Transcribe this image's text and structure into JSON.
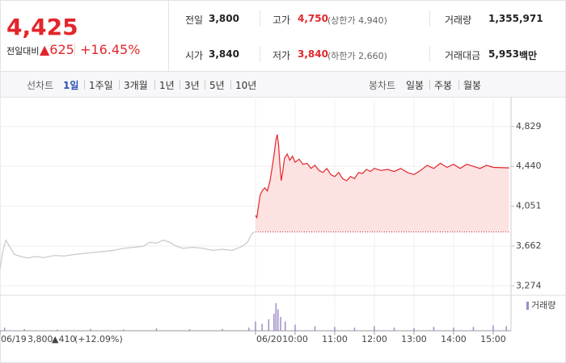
{
  "header": {
    "price": "4,425",
    "change_label": "전일대비",
    "change": "▲625",
    "rate": "+16.45%",
    "rows": [
      [
        {
          "label": "전일",
          "value": "3,800"
        },
        {
          "label": "고가",
          "value": "4,750",
          "note": "(상한가 4,940)"
        },
        {
          "label": "거래량",
          "value": "1,355,971"
        }
      ],
      [
        {
          "label": "시가",
          "value": "3,840"
        },
        {
          "label": "저가",
          "value": "3,840",
          "note": "(하한가 2,660)"
        },
        {
          "label": "거래대금",
          "value": "5,953",
          "unit": "백만"
        }
      ]
    ]
  },
  "tabs": {
    "line_label": "선차트",
    "line_periods": [
      "1일",
      "1주일",
      "3개월",
      "1년",
      "3년",
      "5년",
      "10년"
    ],
    "selected": "1일",
    "candle_label": "봉차트",
    "candle_periods": [
      "일봉",
      "주봉",
      "월봉"
    ]
  },
  "chart_data": {
    "type": "line",
    "xlim": [
      -387,
      387
    ],
    "ylim": [
      3190,
      5040
    ],
    "yticks": [
      {
        "value": 4829,
        "label": "4,829"
      },
      {
        "value": 4440,
        "label": "4,440"
      },
      {
        "value": 4051,
        "label": "4,051"
      },
      {
        "value": 3662,
        "label": "3,662"
      },
      {
        "value": 3274,
        "label": "3,274"
      }
    ],
    "xticks": [
      {
        "value": -387,
        "label": "06/19"
      },
      {
        "value": 0,
        "label": "06/20"
      },
      {
        "value": 60,
        "label": "10:00"
      },
      {
        "value": 120,
        "label": "11:00"
      },
      {
        "value": 180,
        "label": "12:00"
      },
      {
        "value": 240,
        "label": "13:00"
      },
      {
        "value": 300,
        "label": "14:00"
      },
      {
        "value": 360,
        "label": "15:00"
      }
    ],
    "reference_value": 3800,
    "annotation": {
      "price": "3,800",
      "change": "▲410",
      "rate": "(+12.09%)"
    },
    "series": [
      {
        "color": "#c8c8c8",
        "x": [
          -387,
          -383,
          -378,
          -372,
          -365,
          -355,
          -345,
          -335,
          -320,
          -305,
          -290,
          -275,
          -260,
          -245,
          -230,
          -215,
          -200,
          -185,
          -170,
          -160,
          -150,
          -140,
          -130,
          -120,
          -110,
          -95,
          -80,
          -65,
          -50,
          -35,
          -20,
          -12,
          -6,
          -2
        ],
        "values": [
          3440,
          3600,
          3720,
          3650,
          3580,
          3560,
          3545,
          3560,
          3550,
          3570,
          3565,
          3580,
          3590,
          3600,
          3610,
          3620,
          3640,
          3650,
          3660,
          3700,
          3690,
          3720,
          3700,
          3660,
          3640,
          3650,
          3640,
          3620,
          3630,
          3620,
          3660,
          3700,
          3780,
          3800
        ]
      },
      {
        "color": "#e2262b",
        "fill": "#fde2e2",
        "x": [
          0,
          2,
          4,
          7,
          10,
          14,
          18,
          22,
          25,
          28,
          31,
          33,
          35,
          37,
          39,
          41,
          44,
          48,
          52,
          56,
          60,
          66,
          72,
          78,
          84,
          90,
          96,
          102,
          108,
          114,
          120,
          126,
          132,
          138,
          144,
          150,
          156,
          162,
          168,
          174,
          180,
          190,
          200,
          210,
          220,
          230,
          240,
          250,
          260,
          270,
          280,
          290,
          300,
          310,
          320,
          330,
          340,
          350,
          360,
          384
        ],
        "values": [
          3960,
          3940,
          4030,
          4160,
          4200,
          4230,
          4200,
          4300,
          4420,
          4550,
          4700,
          4750,
          4640,
          4450,
          4300,
          4380,
          4520,
          4560,
          4500,
          4540,
          4480,
          4510,
          4460,
          4470,
          4420,
          4450,
          4400,
          4380,
          4420,
          4360,
          4340,
          4380,
          4320,
          4300,
          4340,
          4320,
          4380,
          4370,
          4410,
          4390,
          4420,
          4400,
          4410,
          4390,
          4420,
          4380,
          4360,
          4400,
          4450,
          4420,
          4470,
          4430,
          4460,
          4420,
          4460,
          4440,
          4420,
          4450,
          4430,
          4425
        ]
      },
      {
        "name": "거래량",
        "axis": "y2",
        "type": "bar",
        "color": "#a08cc8",
        "x": [
          -380,
          -350,
          -300,
          -250,
          -200,
          -150,
          -100,
          -50,
          -10,
          0,
          10,
          20,
          28,
          31,
          34,
          38,
          45,
          60,
          90,
          120,
          150,
          180,
          210,
          240,
          270,
          300,
          330,
          360,
          380
        ],
        "values": [
          4000,
          2000,
          1500,
          2500,
          1800,
          3000,
          2000,
          2200,
          4000,
          12000,
          9000,
          15000,
          22000,
          36000,
          28000,
          18000,
          12000,
          8000,
          6000,
          5000,
          4000,
          6000,
          4000,
          3500,
          5000,
          4000,
          5000,
          7000,
          6000
        ]
      }
    ],
    "y2lim": [
      0,
      40000
    ]
  }
}
